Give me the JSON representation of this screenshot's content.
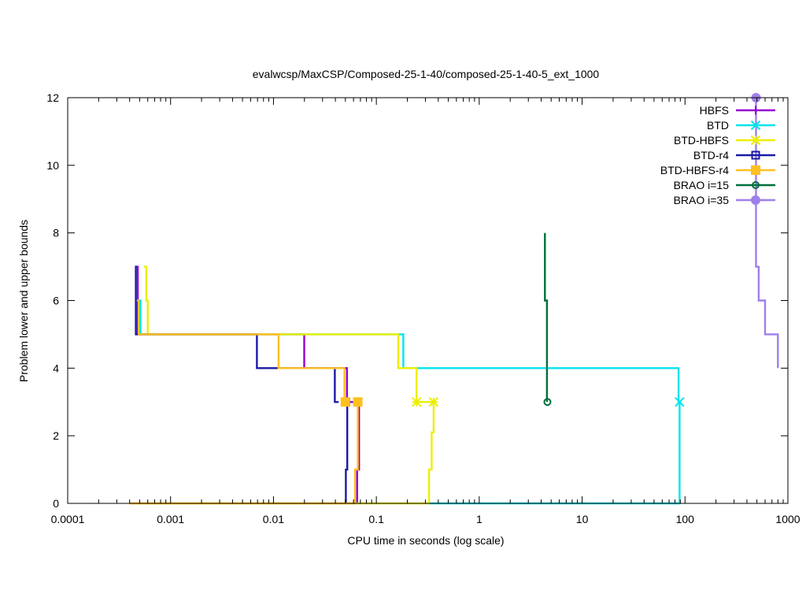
{
  "chart_data": {
    "type": "line",
    "title": "evalwcsp/MaxCSP/Composed-25-1-40/composed-25-1-40-5_ext_1000",
    "xlabel": "CPU time in seconds (log scale)",
    "ylabel": "Problem lower and upper bounds",
    "xscale": "log",
    "xlim": [
      0.0001,
      1000
    ],
    "ylim": [
      0,
      12
    ],
    "xticks": [
      {
        "v": 0.0001,
        "label": "0.0001"
      },
      {
        "v": 0.001,
        "label": "0.001"
      },
      {
        "v": 0.01,
        "label": "0.01"
      },
      {
        "v": 0.1,
        "label": "0.1"
      },
      {
        "v": 1,
        "label": "1"
      },
      {
        "v": 10,
        "label": "10"
      },
      {
        "v": 100,
        "label": "100"
      },
      {
        "v": 1000,
        "label": "1000"
      }
    ],
    "yticks": [
      {
        "v": 0,
        "label": "0"
      },
      {
        "v": 2,
        "label": "2"
      },
      {
        "v": 4,
        "label": "4"
      },
      {
        "v": 6,
        "label": "6"
      },
      {
        "v": 8,
        "label": "8"
      },
      {
        "v": 10,
        "label": "10"
      },
      {
        "v": 12,
        "label": "12"
      }
    ],
    "grid": false,
    "legend_position": "top-right",
    "series": [
      {
        "name": "HBFS",
        "color": "#9400d3",
        "marker": "plus",
        "upper": [
          [
            0.00046,
            7
          ],
          [
            0.00048,
            7
          ],
          [
            0.00048,
            5
          ],
          [
            0.0199,
            5
          ],
          [
            0.0199,
            4
          ],
          [
            0.0518,
            4
          ],
          [
            0.0518,
            3
          ],
          [
            0.065,
            3
          ]
        ],
        "lower": [
          [
            0.065,
            0
          ],
          [
            0.065,
            1
          ],
          [
            0.068,
            1
          ],
          [
            0.068,
            3
          ]
        ],
        "markers": [
          [
            0.065,
            3
          ]
        ]
      },
      {
        "name": "BTD",
        "color": "#00e5ee",
        "marker": "x",
        "upper": [
          [
            0.00048,
            6
          ],
          [
            0.00051,
            6
          ],
          [
            0.00051,
            5
          ],
          [
            0.183,
            5
          ],
          [
            0.183,
            4
          ],
          [
            86.5,
            4
          ],
          [
            86.5,
            3
          ],
          [
            88.5,
            3
          ]
        ],
        "lower": [
          [
            0.33,
            0
          ],
          [
            88.5,
            0
          ],
          [
            88.5,
            3
          ]
        ],
        "markers": [
          [
            88.5,
            3
          ]
        ]
      },
      {
        "name": "BTD-HBFS",
        "color": "#eeee00",
        "marker": "star",
        "upper": [
          [
            0.00055,
            7
          ],
          [
            0.00058,
            7
          ],
          [
            0.00058,
            6
          ],
          [
            0.0006,
            6
          ],
          [
            0.0006,
            5
          ],
          [
            0.163,
            5
          ],
          [
            0.163,
            4
          ],
          [
            0.246,
            4
          ],
          [
            0.246,
            3
          ],
          [
            0.35,
            3
          ]
        ],
        "lower": [
          [
            0.0004,
            0
          ],
          [
            0.325,
            0
          ],
          [
            0.325,
            1
          ],
          [
            0.345,
            1
          ],
          [
            0.345,
            2.1
          ],
          [
            0.36,
            2.1
          ],
          [
            0.36,
            3
          ]
        ],
        "markers": [
          [
            0.246,
            3
          ],
          [
            0.36,
            3
          ]
        ]
      },
      {
        "name": "BTD-r4",
        "color": "#1a1aa6",
        "marker": "square",
        "upper": [
          [
            0.00045,
            7
          ],
          [
            0.00046,
            7
          ],
          [
            0.00046,
            5
          ],
          [
            0.0069,
            5
          ],
          [
            0.0069,
            4
          ],
          [
            0.0395,
            4
          ],
          [
            0.0395,
            3
          ],
          [
            0.043,
            3
          ]
        ],
        "lower": [
          [
            0.0505,
            0
          ],
          [
            0.0505,
            1
          ],
          [
            0.0522,
            1
          ],
          [
            0.0522,
            3
          ]
        ],
        "markers": [
          [
            0.0505,
            3
          ]
        ]
      },
      {
        "name": "BTD-HBFS-r4",
        "color": "#ffc020",
        "marker": "filled-square",
        "upper": [
          [
            0.00047,
            6
          ],
          [
            0.00049,
            6
          ],
          [
            0.00049,
            5
          ],
          [
            0.0112,
            5
          ],
          [
            0.0112,
            4
          ],
          [
            0.049,
            4
          ],
          [
            0.049,
            3
          ],
          [
            0.052,
            3
          ]
        ],
        "lower": [
          [
            0.0004,
            0
          ],
          [
            0.062,
            0
          ],
          [
            0.062,
            1
          ],
          [
            0.066,
            1
          ],
          [
            0.066,
            3
          ]
        ],
        "markers": [
          [
            0.05,
            3
          ],
          [
            0.066,
            3
          ]
        ]
      },
      {
        "name": "BRAO i=15",
        "color": "#006e3c",
        "marker": "circle",
        "upper": [
          [
            4.35,
            8
          ],
          [
            4.35,
            6
          ],
          [
            4.55,
            6
          ],
          [
            4.55,
            3
          ]
        ],
        "lower": [],
        "markers": [
          [
            4.6,
            3
          ]
        ]
      },
      {
        "name": "BRAO i=35",
        "color": "#9f7fe8",
        "marker": "filled-circle",
        "upper": [
          [
            490,
            12
          ],
          [
            490,
            7
          ],
          [
            520,
            7
          ],
          [
            520,
            6
          ],
          [
            600,
            6
          ],
          [
            600,
            5
          ],
          [
            800,
            5
          ],
          [
            800,
            4
          ]
        ],
        "lower": [],
        "markers": [
          [
            490,
            12
          ]
        ]
      }
    ]
  }
}
